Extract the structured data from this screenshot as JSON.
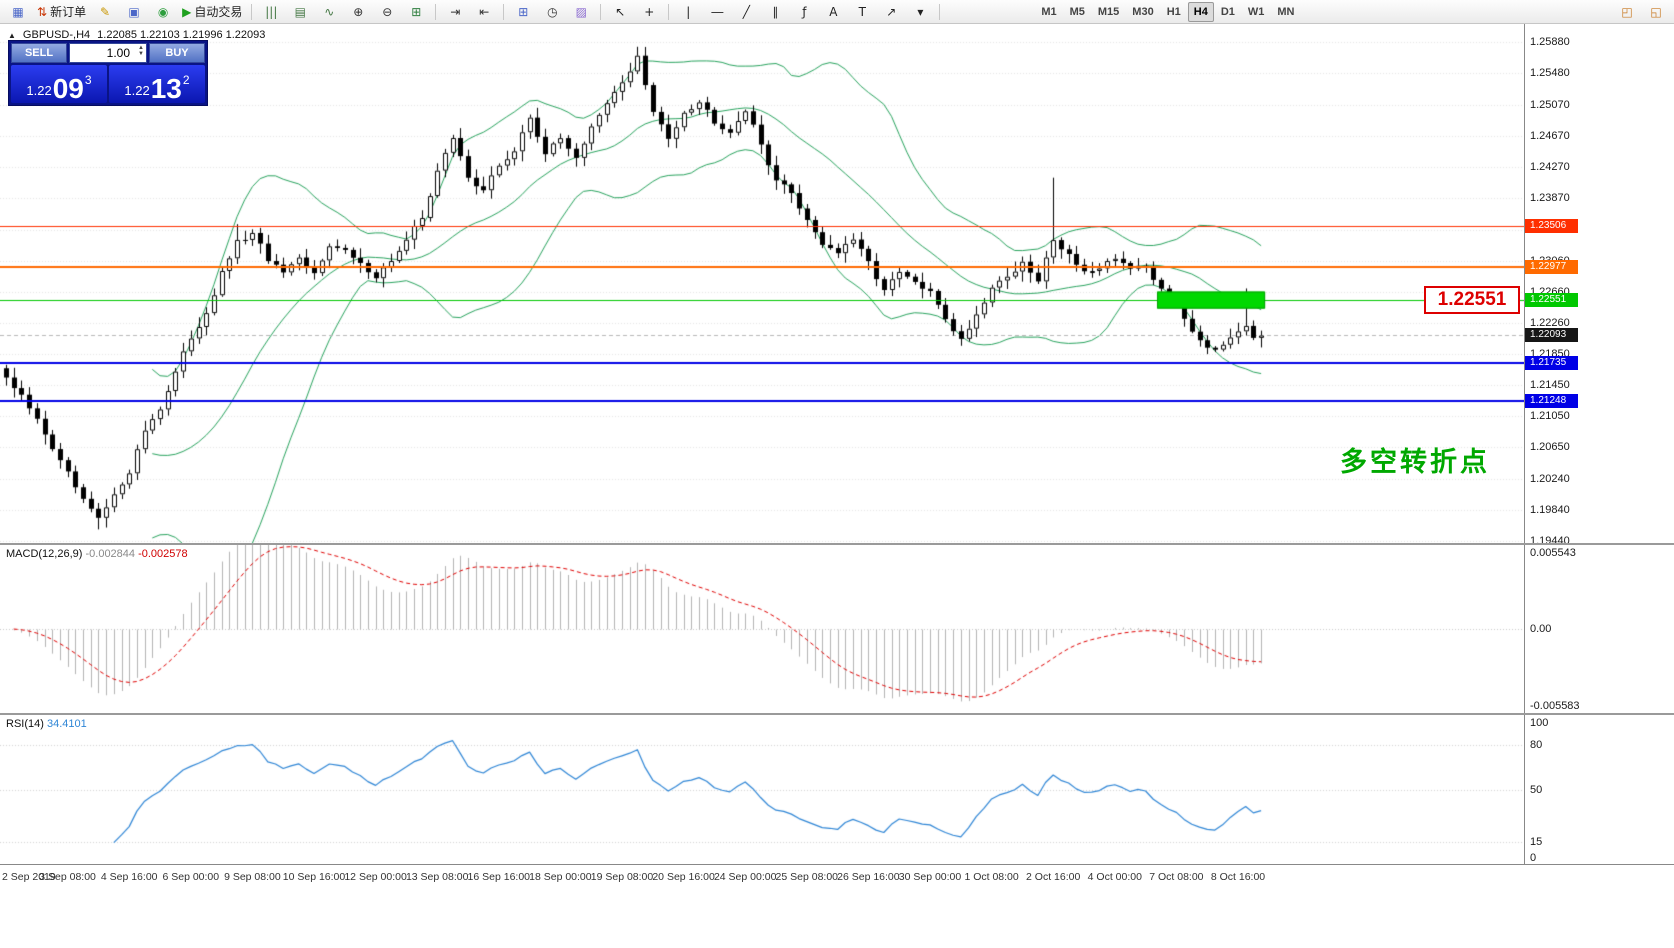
{
  "toolbar": {
    "left_groups": [
      [
        {
          "base": "chart-window",
          "glyph": "▦",
          "color": "#4a66c8"
        },
        {
          "base": "new-order",
          "glyph": "⇅",
          "color": "#c83200",
          "label": "新订单"
        },
        {
          "base": "metaeditor",
          "glyph": "✎",
          "color": "#c89600"
        },
        {
          "base": "data-window",
          "glyph": "▣",
          "color": "#4a66c8"
        },
        {
          "base": "navigator",
          "glyph": "◉",
          "color": "#2e9e3e"
        },
        {
          "base": "auto-trading",
          "glyph": "▶",
          "color": "#1fa01f",
          "label": "自动交易"
        }
      ],
      [
        {
          "base": "bar-chart",
          "glyph": "|||",
          "color": "#447744"
        },
        {
          "base": "candlestick-chart",
          "glyph": "▤",
          "color": "#447744"
        },
        {
          "base": "line-chart",
          "glyph": "∿",
          "color": "#447744"
        },
        {
          "base": "zoom-in",
          "glyph": "⊕",
          "color": "#333333"
        },
        {
          "base": "zoom-out",
          "glyph": "⊖",
          "color": "#333333"
        },
        {
          "base": "tile-windows",
          "glyph": "⊞",
          "color": "#2e7e3e"
        }
      ],
      [
        {
          "base": "auto-scroll",
          "glyph": "⇥",
          "color": "#333333"
        },
        {
          "base": "chart-shift",
          "glyph": "⇤",
          "color": "#333333"
        }
      ],
      [
        {
          "base": "new-chart",
          "glyph": "⊞",
          "color": "#4a66c8"
        },
        {
          "base": "profiles",
          "glyph": "◷",
          "color": "#333333"
        },
        {
          "base": "templates",
          "glyph": "▨",
          "color": "#8a6ad0"
        }
      ],
      [
        {
          "base": "cursor",
          "glyph": "↖",
          "color": "#222222"
        },
        {
          "base": "crosshair",
          "glyph": "+",
          "color": "#222222"
        }
      ],
      [
        {
          "base": "vertical-line",
          "glyph": "|",
          "color": "#222222"
        },
        {
          "base": "horizontal-line",
          "glyph": "―",
          "color": "#222222"
        },
        {
          "base": "trendline",
          "glyph": "╱",
          "color": "#222222"
        },
        {
          "base": "equidistant-channel",
          "glyph": "∥",
          "color": "#222222"
        },
        {
          "base": "fibonacci",
          "glyph": "ƒ",
          "color": "#222222"
        },
        {
          "base": "text",
          "glyph": "A",
          "color": "#222222"
        },
        {
          "base": "text-label",
          "glyph": "T",
          "color": "#222222"
        },
        {
          "base": "arrows",
          "glyph": "↗",
          "color": "#222222"
        },
        {
          "base": "objects-dropdown",
          "glyph": "▾",
          "color": "#222222"
        }
      ]
    ],
    "timeframes": {
      "items": [
        "M1",
        "M5",
        "M15",
        "M30",
        "H1",
        "H4",
        "D1",
        "W1",
        "MN"
      ],
      "active": "H4"
    },
    "right_items": [
      {
        "base": "community",
        "glyph": "◰",
        "color": "#c87820"
      },
      {
        "base": "chat",
        "glyph": "◱",
        "color": "#c87820"
      }
    ]
  },
  "chart": {
    "symbol_period": "GBPUSD-,H4",
    "ohlc": "1.22085 1.22103 1.21996 1.22093"
  },
  "trade_panel": {
    "sell_label": "SELL",
    "buy_label": "BUY",
    "volume": "1.00",
    "sell_price": {
      "base": "1.22",
      "big": "09",
      "sup": "3"
    },
    "buy_price": {
      "base": "1.22",
      "big": "13",
      "sup": "2"
    }
  },
  "annotations": {
    "level_label": "1.22551",
    "cn_text": "多空转折点",
    "green_zone": {
      "i1": 150,
      "i2": 163,
      "p1": 1.2266,
      "p2": 1.2244,
      "color": "#00d800"
    }
  },
  "levels": [
    {
      "value": 1.23506,
      "color": "#ff2f00",
      "width": 1,
      "label": "1.23506"
    },
    {
      "value": 1.22977,
      "color": "#ff6a00",
      "width": 2,
      "label": "1.22977"
    },
    {
      "value": 1.22551,
      "color": "#00c800",
      "width": 1,
      "label": "1.22551"
    },
    {
      "value": 1.21735,
      "color": "#0000e6",
      "width": 2,
      "label": "1.21735"
    },
    {
      "value": 1.21248,
      "color": "#0000e6",
      "width": 2,
      "label": "1.21248"
    }
  ],
  "price_axis": {
    "labels": [
      "1.25880",
      "1.25480",
      "1.25070",
      "1.24670",
      "1.24270",
      "1.23870",
      "1.23460",
      "1.23060",
      "1.22660",
      "1.22260",
      "1.21850",
      "1.21450",
      "1.21050",
      "1.20650",
      "1.20240",
      "1.19840",
      "1.19440"
    ],
    "current": {
      "label": "1.22093",
      "value": 1.22093,
      "bg": "#161616",
      "line_color": "#b8b8b8"
    }
  },
  "macd": {
    "name": "MACD(12,26,9)",
    "value1": "-0.002844",
    "value2": "-0.002578",
    "scale_labels": [
      "0.005543",
      "0.00",
      "-0.005583"
    ],
    "scale_max": 0.005543,
    "scale_min": -0.005583
  },
  "rsi": {
    "name": "RSI(14)",
    "value": "34.4101",
    "scale_labels": [
      "100",
      "80",
      "50",
      "15",
      "0"
    ],
    "levels": [
      80,
      50,
      15
    ]
  },
  "time_axis": {
    "candles_per_label": 8,
    "labels": [
      "2 Sep 2019",
      "3 Sep 08:00",
      "4 Sep 16:00",
      "6 Sep 00:00",
      "9 Sep 08:00",
      "10 Sep 16:00",
      "12 Sep 00:00",
      "13 Sep 08:00",
      "16 Sep 16:00",
      "18 Sep 00:00",
      "19 Sep 08:00",
      "20 Sep 16:00",
      "24 Sep 00:00",
      "25 Sep 08:00",
      "26 Sep 16:00",
      "30 Sep 00:00",
      "1 Oct 08:00",
      "2 Oct 16:00",
      "4 Oct 00:00",
      "7 Oct 08:00",
      "8 Oct 16:00"
    ]
  },
  "chart_data": {
    "type": "candlestick",
    "symbol": "GBPUSD-",
    "timeframe": "H4",
    "count": 164,
    "price_range": [
      1.19414,
      1.26114
    ],
    "visible_high": 1.2582,
    "visible_low": 1.1959,
    "close_path_anchors": [
      [
        0,
        1.2155
      ],
      [
        2,
        1.2128
      ],
      [
        4,
        1.2098
      ],
      [
        6,
        1.2065
      ],
      [
        8,
        1.2028
      ],
      [
        10,
        1.1992
      ],
      [
        12,
        1.1968
      ],
      [
        14,
        1.1998
      ],
      [
        16,
        1.2036
      ],
      [
        18,
        1.2088
      ],
      [
        20,
        1.2118
      ],
      [
        22,
        1.2162
      ],
      [
        24,
        1.2205
      ],
      [
        26,
        1.2242
      ],
      [
        28,
        1.229
      ],
      [
        30,
        1.2328
      ],
      [
        32,
        1.2338
      ],
      [
        34,
        1.2306
      ],
      [
        36,
        1.2288
      ],
      [
        38,
        1.2302
      ],
      [
        40,
        1.2285
      ],
      [
        42,
        1.233
      ],
      [
        44,
        1.2318
      ],
      [
        46,
        1.2298
      ],
      [
        48,
        1.2288
      ],
      [
        50,
        1.2308
      ],
      [
        52,
        1.233
      ],
      [
        54,
        1.236
      ],
      [
        56,
        1.2425
      ],
      [
        58,
        1.2462
      ],
      [
        60,
        1.2415
      ],
      [
        62,
        1.2398
      ],
      [
        64,
        1.2428
      ],
      [
        66,
        1.2448
      ],
      [
        68,
        1.249
      ],
      [
        70,
        1.2448
      ],
      [
        72,
        1.2462
      ],
      [
        74,
        1.2442
      ],
      [
        76,
        1.2478
      ],
      [
        78,
        1.2505
      ],
      [
        80,
        1.2535
      ],
      [
        82,
        1.257
      ],
      [
        84,
        1.2495
      ],
      [
        86,
        1.2462
      ],
      [
        88,
        1.2502
      ],
      [
        90,
        1.2515
      ],
      [
        92,
        1.2488
      ],
      [
        94,
        1.2478
      ],
      [
        96,
        1.2505
      ],
      [
        98,
        1.2455
      ],
      [
        100,
        1.2412
      ],
      [
        102,
        1.2392
      ],
      [
        104,
        1.236
      ],
      [
        106,
        1.233
      ],
      [
        108,
        1.2318
      ],
      [
        110,
        1.2332
      ],
      [
        112,
        1.23
      ],
      [
        114,
        1.2268
      ],
      [
        116,
        1.2288
      ],
      [
        118,
        1.2275
      ],
      [
        120,
        1.2262
      ],
      [
        122,
        1.2232
      ],
      [
        124,
        1.2205
      ],
      [
        126,
        1.2238
      ],
      [
        128,
        1.2275
      ],
      [
        130,
        1.2288
      ],
      [
        132,
        1.2302
      ],
      [
        134,
        1.2278
      ],
      [
        136,
        1.2335
      ],
      [
        138,
        1.2315
      ],
      [
        140,
        1.2295
      ],
      [
        142,
        1.2292
      ],
      [
        144,
        1.2305
      ],
      [
        146,
        1.2298
      ],
      [
        148,
        1.2295
      ],
      [
        150,
        1.2272
      ],
      [
        152,
        1.2255
      ],
      [
        154,
        1.222
      ],
      [
        156,
        1.22
      ],
      [
        158,
        1.2196
      ],
      [
        160,
        1.2218
      ],
      [
        161,
        1.2228
      ],
      [
        162,
        1.2212
      ],
      [
        163,
        1.22093
      ]
    ],
    "forced": {
      "highs": [
        [
          30,
          1.2353
        ],
        [
          82,
          1.2582
        ],
        [
          136,
          1.2413
        ],
        [
          161,
          1.227
        ]
      ],
      "lows": [
        [
          12,
          1.1959
        ],
        [
          124,
          1.2196
        ]
      ],
      "final_close": 1.22093
    },
    "noise": 0.001,
    "indicators": {
      "bollinger": {
        "period": 20,
        "deviation": 2,
        "color": "#27a35d"
      },
      "macd": {
        "fast": 12,
        "slow": 26,
        "signal": 9,
        "histogram_color": "#b4b4b4",
        "signal_color": "#e00000"
      },
      "rsi": {
        "period": 14,
        "color": "#2f86d6"
      }
    }
  }
}
